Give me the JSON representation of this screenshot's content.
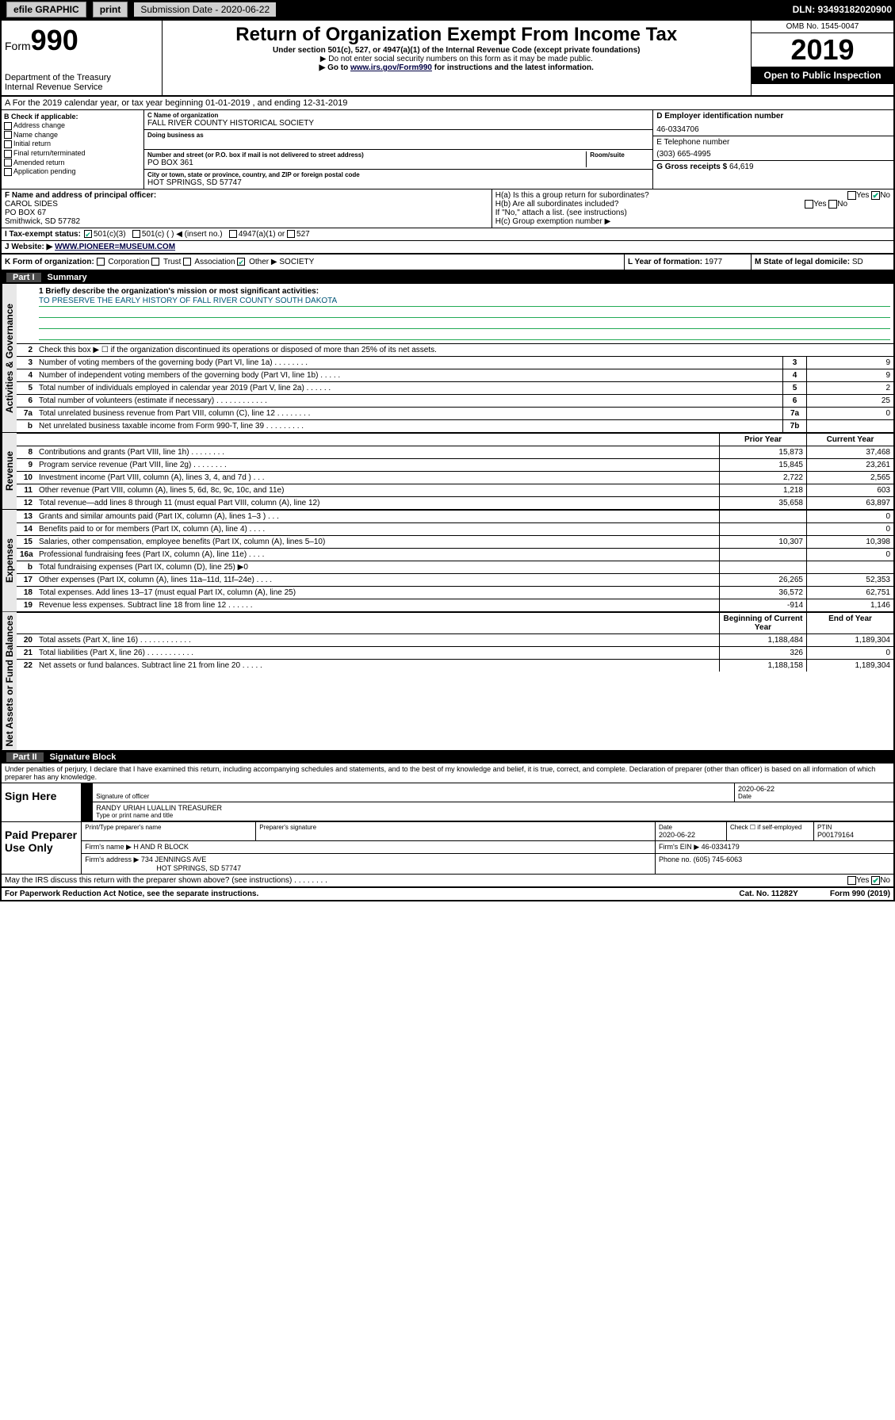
{
  "toolbar": {
    "efile": "efile GRAPHIC",
    "print": "print",
    "sub_label": "Submission Date - 2020-06-22",
    "dln": "DLN: 93493182020900"
  },
  "header": {
    "form_prefix": "Form",
    "form_num": "990",
    "dept1": "Department of the Treasury",
    "dept2": "Internal Revenue Service",
    "title": "Return of Organization Exempt From Income Tax",
    "sub": "Under section 501(c), 527, or 4947(a)(1) of the Internal Revenue Code (except private foundations)",
    "note1": "▶ Do not enter social security numbers on this form as it may be made public.",
    "note2_a": "▶ Go to ",
    "note2_link": "www.irs.gov/Form990",
    "note2_b": " for instructions and the latest information.",
    "omb": "OMB No. 1545-0047",
    "year": "2019",
    "open": "Open to Public Inspection"
  },
  "rowA": "A  For the 2019 calendar year, or tax year beginning 01-01-2019   , and ending 12-31-2019",
  "colB": {
    "hdr": "B Check if applicable:",
    "opts": [
      "Address change",
      "Name change",
      "Initial return",
      "Final return/terminated",
      "Amended return",
      "Application pending"
    ]
  },
  "colC": {
    "name_lbl": "C Name of organization",
    "name": "FALL RIVER COUNTY HISTORICAL SOCIETY",
    "dba_lbl": "Doing business as",
    "addr_lbl": "Number and street (or P.O. box if mail is not delivered to street address)",
    "room_lbl": "Room/suite",
    "addr": "PO BOX 361",
    "city_lbl": "City or town, state or province, country, and ZIP or foreign postal code",
    "city": "HOT SPRINGS, SD  57747"
  },
  "colD": {
    "ein_lbl": "D Employer identification number",
    "ein": "46-0334706",
    "phone_lbl": "E Telephone number",
    "phone": "(303) 665-4995",
    "gross_lbl": "G Gross receipts $",
    "gross": "64,619"
  },
  "rowF": {
    "lbl": "F  Name and address of principal officer:",
    "name": "CAROL SIDES",
    "addr1": "PO BOX 67",
    "addr2": "Smithwick, SD  57782"
  },
  "rowH": {
    "a": "H(a)  Is this a group return for subordinates?",
    "a_yes": "Yes",
    "a_no": "No",
    "b": "H(b)  Are all subordinates included?",
    "b_yes": "Yes",
    "b_no": "No",
    "b_note": "If \"No,\" attach a list. (see instructions)",
    "c": "H(c)  Group exemption number ▶"
  },
  "rowI": {
    "lbl": "I   Tax-exempt status:",
    "o1": "501(c)(3)",
    "o2": "501(c) (    ) ◀ (insert no.)",
    "o3": "4947(a)(1) or",
    "o4": "527"
  },
  "rowJ": {
    "lbl": "J   Website: ▶",
    "val": "WWW.PIONEER=MUSEUM.COM"
  },
  "rowK": {
    "k": "K Form of organization:",
    "opts": [
      "Corporation",
      "Trust",
      "Association",
      "Other ▶"
    ],
    "other": "SOCIETY",
    "l_lbl": "L Year of formation:",
    "l_val": "1977",
    "m_lbl": "M State of legal domicile:",
    "m_val": "SD"
  },
  "part1": {
    "hdr_num": "Part I",
    "hdr_txt": "Summary",
    "l1_lbl": "1  Briefly describe the organization's mission or most significant activities:",
    "l1_val": "TO PRESERVE THE EARLY HISTORY OF FALL RIVER COUNTY SOUTH DAKOTA",
    "l2": "Check this box ▶ ☐  if the organization discontinued its operations or disposed of more than 25% of its net assets.",
    "lines_single": [
      {
        "n": "3",
        "d": "Number of voting members of the governing body (Part VI, line 1a)  .   .   .   .   .   .   .   .",
        "c": "3",
        "v": "9"
      },
      {
        "n": "4",
        "d": "Number of independent voting members of the governing body (Part VI, line 1b)  .   .   .   .   .",
        "c": "4",
        "v": "9"
      },
      {
        "n": "5",
        "d": "Total number of individuals employed in calendar year 2019 (Part V, line 2a)  .   .   .   .   .   .",
        "c": "5",
        "v": "2"
      },
      {
        "n": "6",
        "d": "Total number of volunteers (estimate if necessary)  .   .   .   .   .   .   .   .   .   .   .   .",
        "c": "6",
        "v": "25"
      },
      {
        "n": "7a",
        "d": "Total unrelated business revenue from Part VIII, column (C), line 12  .   .   .   .   .   .   .   .",
        "c": "7a",
        "v": "0"
      },
      {
        "n": "b",
        "d": "Net unrelated business taxable income from Form 990-T, line 39  .   .   .   .   .   .   .   .   .",
        "c": "7b",
        "v": ""
      }
    ],
    "col_py": "Prior Year",
    "col_cy": "Current Year",
    "sections": [
      {
        "label": "Revenue",
        "rows": [
          {
            "n": "8",
            "d": "Contributions and grants (Part VIII, line 1h)  .   .   .   .   .   .   .   .",
            "py": "15,873",
            "cy": "37,468"
          },
          {
            "n": "9",
            "d": "Program service revenue (Part VIII, line 2g)  .   .   .   .   .   .   .   .",
            "py": "15,845",
            "cy": "23,261"
          },
          {
            "n": "10",
            "d": "Investment income (Part VIII, column (A), lines 3, 4, and 7d )  .   .   .",
            "py": "2,722",
            "cy": "2,565"
          },
          {
            "n": "11",
            "d": "Other revenue (Part VIII, column (A), lines 5, 6d, 8c, 9c, 10c, and 11e)",
            "py": "1,218",
            "cy": "603"
          },
          {
            "n": "12",
            "d": "Total revenue—add lines 8 through 11 (must equal Part VIII, column (A), line 12)",
            "py": "35,658",
            "cy": "63,897"
          }
        ]
      },
      {
        "label": "Expenses",
        "rows": [
          {
            "n": "13",
            "d": "Grants and similar amounts paid (Part IX, column (A), lines 1–3 )  .   .   .",
            "py": "",
            "cy": "0"
          },
          {
            "n": "14",
            "d": "Benefits paid to or for members (Part IX, column (A), line 4)  .   .   .   .",
            "py": "",
            "cy": "0"
          },
          {
            "n": "15",
            "d": "Salaries, other compensation, employee benefits (Part IX, column (A), lines 5–10)",
            "py": "10,307",
            "cy": "10,398"
          },
          {
            "n": "16a",
            "d": "Professional fundraising fees (Part IX, column (A), line 11e)  .   .   .   .",
            "py": "",
            "cy": "0"
          },
          {
            "n": "b",
            "d": "Total fundraising expenses (Part IX, column (D), line 25) ▶0",
            "py": "",
            "cy": ""
          },
          {
            "n": "17",
            "d": "Other expenses (Part IX, column (A), lines 11a–11d, 11f–24e)  .   .   .   .",
            "py": "26,265",
            "cy": "52,353"
          },
          {
            "n": "18",
            "d": "Total expenses. Add lines 13–17 (must equal Part IX, column (A), line 25)",
            "py": "36,572",
            "cy": "62,751"
          },
          {
            "n": "19",
            "d": "Revenue less expenses. Subtract line 18 from line 12  .   .   .   .   .   .",
            "py": "-914",
            "cy": "1,146"
          }
        ]
      },
      {
        "label": "Net Assets or Fund Balances",
        "col_py": "Beginning of Current Year",
        "col_cy": "End of Year",
        "rows": [
          {
            "n": "20",
            "d": "Total assets (Part X, line 16)  .   .   .   .   .   .   .   .   .   .   .   .",
            "py": "1,188,484",
            "cy": "1,189,304"
          },
          {
            "n": "21",
            "d": "Total liabilities (Part X, line 26)  .   .   .   .   .   .   .   .   .   .   .",
            "py": "326",
            "cy": "0"
          },
          {
            "n": "22",
            "d": "Net assets or fund balances. Subtract line 21 from line 20  .   .   .   .   .",
            "py": "1,188,158",
            "cy": "1,189,304"
          }
        ]
      }
    ],
    "side1": "Activities & Governance"
  },
  "part2": {
    "hdr_num": "Part II",
    "hdr_txt": "Signature Block",
    "declare": "Under penalties of perjury, I declare that I have examined this return, including accompanying schedules and statements, and to the best of my knowledge and belief, it is true, correct, and complete. Declaration of preparer (other than officer) is based on all information of which preparer has any knowledge.",
    "sign_here": "Sign Here",
    "sig_off_lbl": "Signature of officer",
    "date1": "2020-06-22",
    "date_lbl": "Date",
    "officer": "RANDY URIAH LUALLIN  TREASURER",
    "typed_lbl": "Type or print name and title",
    "paid": "Paid Preparer Use Only",
    "prep_name_lbl": "Print/Type preparer's name",
    "prep_sig_lbl": "Preparer's signature",
    "date2": "2020-06-22",
    "check_self": "Check ☐ if self-employed",
    "ptin_lbl": "PTIN",
    "ptin": "P00179164",
    "firm_name_lbl": "Firm's name    ▶",
    "firm_name": "H AND R BLOCK",
    "firm_ein_lbl": "Firm's EIN ▶",
    "firm_ein": "46-0334179",
    "firm_addr_lbl": "Firm's address ▶",
    "firm_addr1": "734 JENNINGS AVE",
    "firm_addr2": "HOT SPRINGS, SD  57747",
    "phone_lbl": "Phone no.",
    "phone": "(605) 745-6063",
    "discuss": "May the IRS discuss this return with the preparer shown above? (see instructions)   .   .   .   .   .   .   .   .",
    "yes": "Yes",
    "no": "No"
  },
  "footer": {
    "pra": "For Paperwork Reduction Act Notice, see the separate instructions.",
    "cat": "Cat. No. 11282Y",
    "form": "Form 990 (2019)"
  }
}
